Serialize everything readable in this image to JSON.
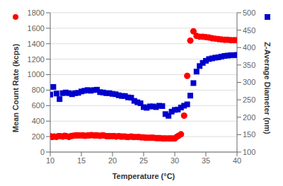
{
  "chart_data": {
    "type": "scatter",
    "xlabel": "Temperature (°C)",
    "ylabel": "Mean Count Rate (kcps)",
    "y2label": "Z-Average Diameter (nm)",
    "xlim": [
      10,
      40
    ],
    "xticks": [
      10,
      15,
      20,
      25,
      30,
      35,
      40
    ],
    "ylim": [
      0,
      1800
    ],
    "yticks": [
      0,
      200,
      400,
      600,
      800,
      1000,
      1200,
      1400,
      1600,
      1800
    ],
    "y2lim": [
      100,
      500
    ],
    "y2ticks": [
      100,
      150,
      200,
      250,
      300,
      350,
      400,
      450,
      500
    ],
    "grid": true,
    "series": [
      {
        "color": "#ff0000",
        "marker": "circle",
        "x": [
          10.0,
          10.3,
          10.6,
          11.0,
          11.3,
          11.6,
          12.0,
          12.3,
          12.6,
          13.0,
          13.3,
          13.6,
          14.0,
          14.3,
          14.6,
          15.0,
          15.3,
          15.6,
          16.0,
          16.3,
          16.6,
          17.0,
          17.3,
          17.6,
          18.0,
          18.3,
          18.6,
          19.0,
          19.3,
          19.6,
          20.0,
          20.3,
          20.6,
          21.0,
          21.3,
          21.6,
          22.0,
          22.3,
          22.6,
          23.0,
          23.3,
          23.6,
          24.0,
          24.3,
          24.6,
          25.0,
          25.3,
          25.6,
          26.0,
          26.3,
          26.6,
          27.0,
          27.3,
          27.6,
          28.0,
          28.3,
          28.6,
          29.0,
          29.3,
          29.6,
          30.0,
          30.3,
          30.6,
          31.0,
          31.5,
          32.0,
          32.5,
          33.0,
          33.5,
          34.0,
          34.5,
          35.0,
          35.5,
          36.0,
          36.5,
          37.0,
          37.5,
          38.0,
          38.5,
          39.0,
          39.5,
          40.0
        ],
        "values": [
          205,
          195,
          200,
          195,
          205,
          205,
          200,
          210,
          205,
          195,
          205,
          210,
          215,
          215,
          215,
          215,
          215,
          210,
          215,
          215,
          220,
          215,
          215,
          215,
          210,
          215,
          215,
          205,
          205,
          205,
          205,
          205,
          200,
          205,
          200,
          200,
          200,
          195,
          195,
          200,
          195,
          195,
          195,
          195,
          190,
          190,
          185,
          185,
          185,
          185,
          185,
          180,
          180,
          180,
          175,
          175,
          175,
          175,
          175,
          175,
          175,
          195,
          210,
          230,
          470,
          985,
          1440,
          1560,
          1500,
          1490,
          1490,
          1485,
          1480,
          1470,
          1465,
          1460,
          1455,
          1450,
          1450,
          1445,
          1445,
          1445
        ]
      },
      {
        "color": "#0000cd",
        "marker": "square",
        "axis": "y2",
        "x": [
          10.0,
          10.5,
          11.0,
          11.5,
          12.0,
          12.5,
          13.0,
          13.5,
          14.0,
          14.5,
          15.0,
          15.5,
          16.0,
          16.5,
          17.0,
          17.5,
          18.0,
          18.5,
          19.0,
          19.5,
          20.0,
          20.5,
          21.0,
          21.5,
          22.0,
          22.5,
          23.0,
          23.5,
          24.0,
          24.5,
          25.0,
          25.5,
          26.0,
          26.5,
          27.0,
          27.5,
          28.0,
          28.5,
          29.0,
          29.5,
          30.0,
          30.5,
          31.0,
          31.5,
          32.0,
          32.5,
          33.0,
          33.5,
          34.0,
          34.5,
          35.0,
          35.5,
          36.0,
          36.5,
          37.0,
          37.5,
          38.0,
          38.5,
          39.0,
          39.5,
          40.0
        ],
        "values": [
          265,
          287,
          268,
          252,
          269,
          271,
          269,
          266,
          269,
          270,
          274,
          276,
          278,
          276,
          278,
          279,
          272,
          271,
          269,
          269,
          267,
          266,
          263,
          261,
          261,
          257,
          256,
          247,
          243,
          240,
          229,
          227,
          231,
          231,
          229,
          233,
          232,
          209,
          204,
          216,
          221,
          222,
          228,
          233,
          237,
          262,
          298,
          331,
          347,
          356,
          362,
          367,
          369,
          371,
          372,
          374,
          376,
          377,
          378,
          378,
          379
        ]
      }
    ]
  }
}
